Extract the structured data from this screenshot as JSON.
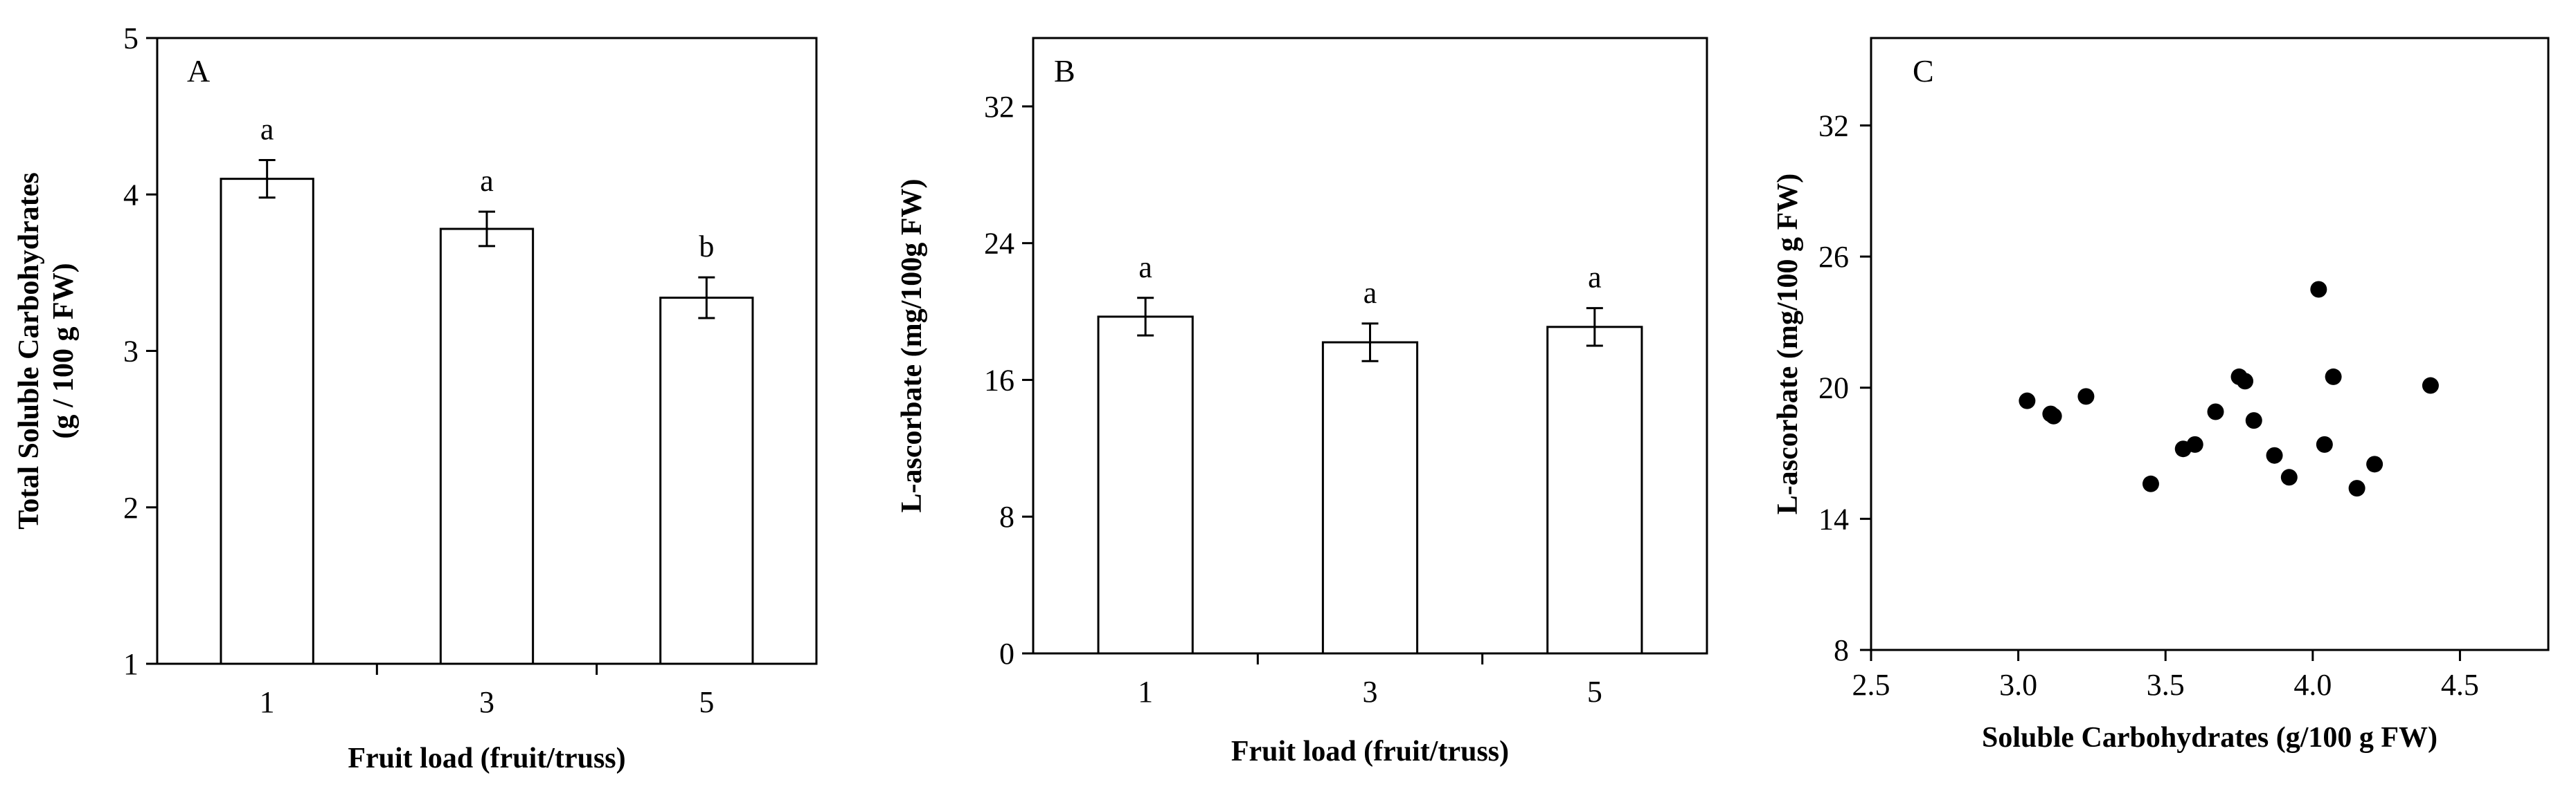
{
  "chart_data": [
    {
      "panel": "A",
      "type": "bar",
      "categories": [
        "1",
        "3",
        "5"
      ],
      "values": [
        4.1,
        3.78,
        3.34
      ],
      "errors": [
        0.12,
        0.11,
        0.13
      ],
      "significance": [
        "a",
        "a",
        "b"
      ],
      "xlabel": "Fruit load (fruit/truss)",
      "ylabel": [
        "Total Soluble Carbohydrates",
        "(g / 100 g FW)"
      ],
      "ylim": [
        1,
        5
      ],
      "yticks": [
        1,
        2,
        3,
        4,
        5
      ],
      "grid": false
    },
    {
      "panel": "B",
      "type": "bar",
      "categories": [
        "1",
        "3",
        "5"
      ],
      "values": [
        19.7,
        18.2,
        19.1
      ],
      "errors": [
        1.1,
        1.1,
        1.1
      ],
      "significance": [
        "a",
        "a",
        "a"
      ],
      "xlabel": "Fruit load (fruit/truss)",
      "ylabel": [
        "L-ascorbate (mg/100g FW)"
      ],
      "ylim": [
        0,
        36
      ],
      "yticks": [
        0,
        8,
        16,
        24,
        32
      ],
      "grid": false
    },
    {
      "panel": "C",
      "type": "scatter",
      "x": [
        3.03,
        3.11,
        3.12,
        3.23,
        3.45,
        3.56,
        3.6,
        3.67,
        3.75,
        3.77,
        3.8,
        3.87,
        3.92,
        4.02,
        4.04,
        4.07,
        4.15,
        4.21,
        4.4
      ],
      "y": [
        19.4,
        18.8,
        18.7,
        19.6,
        15.6,
        17.2,
        17.4,
        18.9,
        20.5,
        20.3,
        18.5,
        16.9,
        15.9,
        24.5,
        17.4,
        20.5,
        15.4,
        16.5,
        20.1
      ],
      "xlabel": "Soluble Carbohydrates (g/100 g FW)",
      "ylabel": [
        "L-ascorbate (mg/100 g FW)"
      ],
      "xlim": [
        2.5,
        4.8
      ],
      "ylim": [
        8,
        36
      ],
      "xticks": [
        "2.5",
        "3.0",
        "3.5",
        "4.0",
        "4.5"
      ],
      "yticks": [
        8,
        14,
        20,
        26,
        32
      ],
      "grid": false
    }
  ]
}
